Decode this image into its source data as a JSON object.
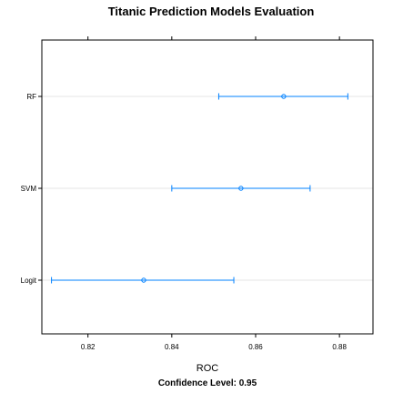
{
  "colors": {
    "interval": "#0080ff",
    "gridline": "#e6e6e6",
    "frame": "#000000",
    "background": "#ffffff"
  },
  "chart_data": {
    "type": "dotplot",
    "title": "Titanic Prediction Models Evaluation",
    "xlabel": "ROC",
    "subtitle": "Confidence Level: 0.95",
    "ylabel": "",
    "xlim": [
      0.809,
      0.888
    ],
    "x_ticks": [
      0.82,
      0.84,
      0.86,
      0.88
    ],
    "x_tick_labels": [
      "0.82",
      "0.84",
      "0.86",
      "0.88"
    ],
    "categories": [
      "RF",
      "SVM",
      "Logit"
    ],
    "series": [
      {
        "estimate": 0.8667,
        "lower": 0.8512,
        "upper": 0.882
      },
      {
        "estimate": 0.8565,
        "lower": 0.84,
        "upper": 0.873
      },
      {
        "estimate": 0.8333,
        "lower": 0.8113,
        "upper": 0.8548
      }
    ],
    "grid": true,
    "legend": "none"
  }
}
